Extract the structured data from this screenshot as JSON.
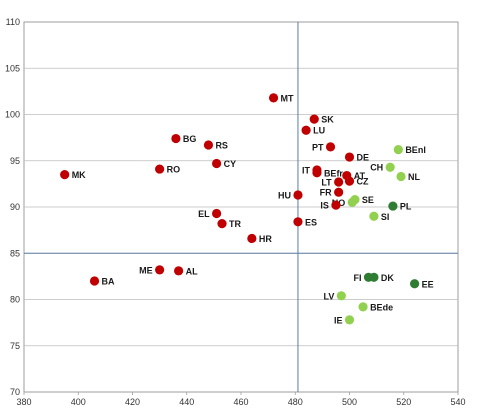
{
  "chart_data": {
    "type": "scatter",
    "title": "",
    "xlabel": "",
    "ylabel": "",
    "xlim": [
      380,
      540
    ],
    "ylim": [
      70,
      110
    ],
    "x_ticks": [
      "380",
      "400",
      "420",
      "440",
      "460",
      "480",
      "500",
      "520",
      "540"
    ],
    "y_ticks": [
      "70",
      "75",
      "80",
      "85",
      "90",
      "95",
      "100",
      "105",
      "110"
    ],
    "grid": true,
    "reference_lines": {
      "x": 481,
      "y": 85
    },
    "group_colors": {
      "red": "#c00000",
      "light": "#92d050",
      "dark": "#2e7d32"
    },
    "points": [
      {
        "label": "MT",
        "x": 472,
        "y": 101.8,
        "group": "red",
        "side": "right"
      },
      {
        "label": "SK",
        "x": 487,
        "y": 99.5,
        "group": "red",
        "side": "right"
      },
      {
        "label": "LU",
        "x": 484,
        "y": 98.3,
        "group": "red",
        "side": "right"
      },
      {
        "label": "BG",
        "x": 436,
        "y": 97.4,
        "group": "red",
        "side": "right"
      },
      {
        "label": "RS",
        "x": 448,
        "y": 96.7,
        "group": "red",
        "side": "right"
      },
      {
        "label": "PT",
        "x": 493,
        "y": 96.5,
        "group": "red",
        "side": "left"
      },
      {
        "label": "DE",
        "x": 500,
        "y": 95.4,
        "group": "red",
        "side": "right"
      },
      {
        "label": "BEnl",
        "x": 518,
        "y": 96.2,
        "group": "light",
        "side": "right"
      },
      {
        "label": "CY",
        "x": 451,
        "y": 94.7,
        "group": "red",
        "side": "right"
      },
      {
        "label": "RO",
        "x": 430,
        "y": 94.1,
        "group": "red",
        "side": "right"
      },
      {
        "label": "MK",
        "x": 395,
        "y": 93.5,
        "group": "red",
        "side": "right"
      },
      {
        "label": "CH",
        "x": 515,
        "y": 94.3,
        "group": "light",
        "side": "left"
      },
      {
        "label": "IT",
        "x": 488,
        "y": 94,
        "group": "red",
        "side": "left"
      },
      {
        "label": "BEfr",
        "x": 488,
        "y": 93.7,
        "group": "red",
        "side": "right"
      },
      {
        "label": "AT",
        "x": 499,
        "y": 93.4,
        "group": "red",
        "side": "right"
      },
      {
        "label": "NL",
        "x": 519,
        "y": 93.3,
        "group": "light",
        "side": "right"
      },
      {
        "label": "LT",
        "x": 496,
        "y": 92.7,
        "group": "red",
        "side": "left"
      },
      {
        "label": "CZ",
        "x": 500,
        "y": 92.8,
        "group": "red",
        "side": "right"
      },
      {
        "label": "FR",
        "x": 496,
        "y": 91.6,
        "group": "red",
        "side": "left"
      },
      {
        "label": "HU",
        "x": 481,
        "y": 91.3,
        "group": "red",
        "side": "left"
      },
      {
        "label": "SE",
        "x": 502,
        "y": 90.8,
        "group": "light",
        "side": "right"
      },
      {
        "label": "NO",
        "x": 501,
        "y": 90.5,
        "group": "light",
        "side": "left"
      },
      {
        "label": "PL",
        "x": 516,
        "y": 90.1,
        "group": "dark",
        "side": "right"
      },
      {
        "label": "IS",
        "x": 495,
        "y": 90.2,
        "group": "red",
        "side": "left"
      },
      {
        "label": "EL",
        "x": 451,
        "y": 89.3,
        "group": "red",
        "side": "left"
      },
      {
        "label": "SI",
        "x": 509,
        "y": 89,
        "group": "light",
        "side": "right"
      },
      {
        "label": "TR",
        "x": 453,
        "y": 88.2,
        "group": "red",
        "side": "right"
      },
      {
        "label": "ES",
        "x": 481,
        "y": 88.4,
        "group": "red",
        "side": "right"
      },
      {
        "label": "HR",
        "x": 464,
        "y": 86.6,
        "group": "red",
        "side": "right"
      },
      {
        "label": "FI",
        "x": 507,
        "y": 82.4,
        "group": "dark",
        "side": "left"
      },
      {
        "label": "DK",
        "x": 509,
        "y": 82.4,
        "group": "dark",
        "side": "right"
      },
      {
        "label": "ME",
        "x": 430,
        "y": 83.2,
        "group": "red",
        "side": "left"
      },
      {
        "label": "AL",
        "x": 437,
        "y": 83.1,
        "group": "red",
        "side": "right"
      },
      {
        "label": "EE",
        "x": 524,
        "y": 81.7,
        "group": "dark",
        "side": "right"
      },
      {
        "label": "BA",
        "x": 406,
        "y": 82,
        "group": "red",
        "side": "right"
      },
      {
        "label": "LV",
        "x": 497,
        "y": 80.4,
        "group": "light",
        "side": "left"
      },
      {
        "label": "BEde",
        "x": 505,
        "y": 79.2,
        "group": "light",
        "side": "right"
      },
      {
        "label": "IE",
        "x": 500,
        "y": 77.8,
        "group": "light",
        "side": "left"
      }
    ]
  }
}
